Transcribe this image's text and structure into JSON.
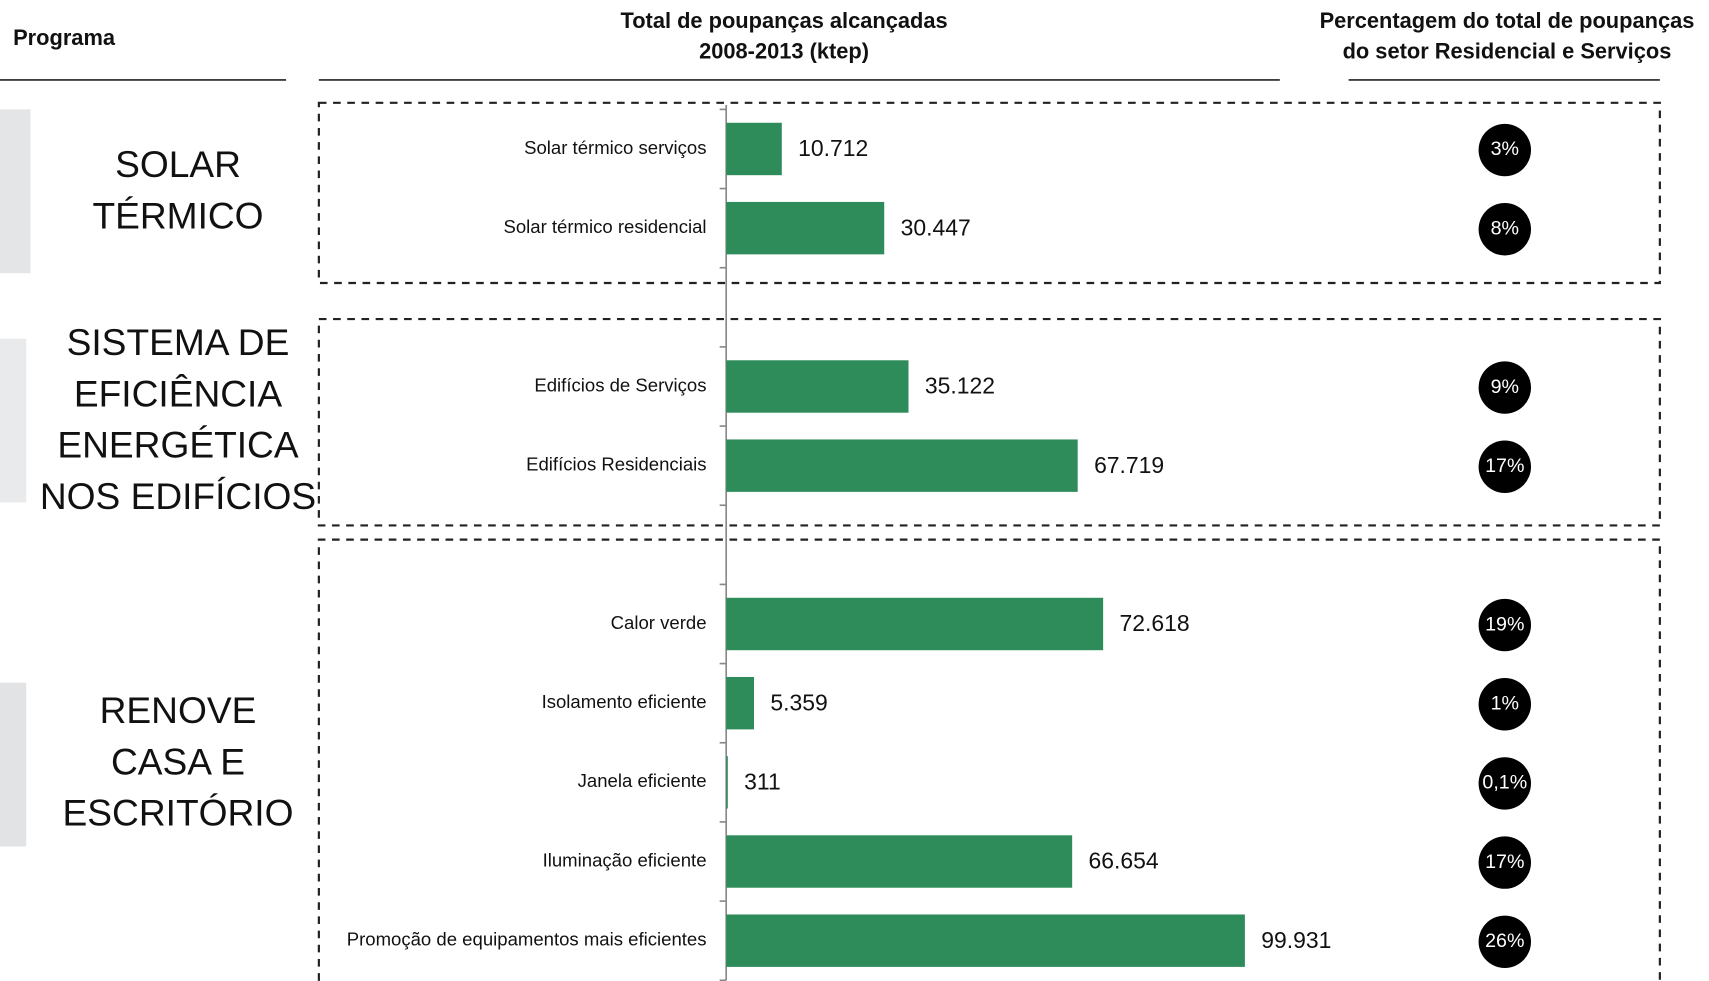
{
  "chart_data": {
    "type": "bar",
    "orientation": "horizontal",
    "headers": {
      "program": "Programa",
      "total": [
        "Total de poupanças alcançadas",
        "2008-2013 (ktep)"
      ],
      "percent": [
        "Percentagem do total de poupanças",
        "do setor Residencial e Serviços"
      ]
    },
    "groups": [
      {
        "label": [
          "SOLAR",
          "TÉRMICO"
        ]
      },
      {
        "label": [
          "SISTEMA DE",
          "EFICIÊNCIA",
          "ENERGÉTICA",
          "NOS EDIFÍCIOS"
        ]
      },
      {
        "label": [
          "RENOVE",
          "CASA E",
          "ESCRITÓRIO"
        ]
      }
    ],
    "categories": [
      "Solar térmico serviços",
      "Solar térmico residencial",
      null,
      "Edifícios de Serviços",
      "Edifícios Residenciais",
      null,
      "Calor verde",
      "Isolamento eficiente",
      "Janela eficiente",
      "Iluminação eficiente",
      "Promoção de equipamentos mais eficientes"
    ],
    "series": [
      {
        "name": "Total de poupanças alcançadas 2008-2013 (ktep)",
        "color": "#2e8b5a",
        "values": [
          10712,
          30447,
          null,
          35122,
          67719,
          null,
          72618,
          5359,
          311,
          66654,
          99931
        ],
        "value_labels": [
          "10.712",
          "30.447",
          null,
          "35.122",
          "67.719",
          null,
          "72.618",
          "5.359",
          "311",
          "66.654",
          "99.931"
        ]
      },
      {
        "name": "Percentagem do total de poupanças do setor Residencial e Serviços",
        "color": "#000000",
        "values": [
          3,
          8,
          null,
          9,
          17,
          null,
          19,
          1,
          0.1,
          17,
          26
        ],
        "value_labels": [
          "3%",
          "8%",
          null,
          "9%",
          "17%",
          null,
          "19%",
          "1%",
          "0,1%",
          "17%",
          "26%"
        ]
      }
    ]
  }
}
